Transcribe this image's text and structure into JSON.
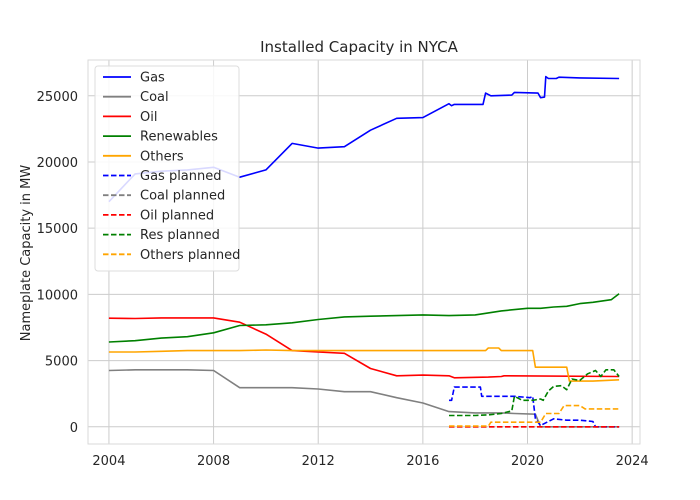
{
  "chart_data": {
    "type": "line",
    "title": "Installed Capacity in NYCA",
    "xlabel": "",
    "ylabel": "Nameplate Capacity in MW",
    "xlim": [
      2003.2,
      2024.3
    ],
    "ylim": [
      -1300,
      27700
    ],
    "xticks": [
      2004,
      2008,
      2012,
      2016,
      2020,
      2024
    ],
    "yticks": [
      0,
      5000,
      10000,
      15000,
      20000,
      25000
    ],
    "grid": true,
    "legend_position": "top-left",
    "series": [
      {
        "name": "Gas",
        "color": "#0000ff",
        "dashed": false,
        "points": [
          [
            2004,
            17000
          ],
          [
            2005,
            19100
          ],
          [
            2006,
            19300
          ],
          [
            2007,
            19400
          ],
          [
            2008,
            19600
          ],
          [
            2009,
            18850
          ],
          [
            2010,
            19400
          ],
          [
            2011,
            21400
          ],
          [
            2012,
            21050
          ],
          [
            2013,
            21150
          ],
          [
            2014,
            22400
          ],
          [
            2015,
            23300
          ],
          [
            2016,
            23350
          ],
          [
            2017,
            24400
          ],
          [
            2017.1,
            24250
          ],
          [
            2017.2,
            24350
          ],
          [
            2018.3,
            24350
          ],
          [
            2018.4,
            25200
          ],
          [
            2018.6,
            25000
          ],
          [
            2019.4,
            25050
          ],
          [
            2019.5,
            25250
          ],
          [
            2020.4,
            25200
          ],
          [
            2020.5,
            24850
          ],
          [
            2020.65,
            24900
          ],
          [
            2020.7,
            26450
          ],
          [
            2020.8,
            26300
          ],
          [
            2021.1,
            26300
          ],
          [
            2021.2,
            26400
          ],
          [
            2022.0,
            26350
          ],
          [
            2023.5,
            26300
          ]
        ]
      },
      {
        "name": "Coal",
        "color": "#808080",
        "dashed": false,
        "points": [
          [
            2004,
            4250
          ],
          [
            2005,
            4300
          ],
          [
            2006,
            4300
          ],
          [
            2007,
            4300
          ],
          [
            2008,
            4250
          ],
          [
            2009,
            2950
          ],
          [
            2010,
            2950
          ],
          [
            2011,
            2950
          ],
          [
            2012,
            2850
          ],
          [
            2013,
            2650
          ],
          [
            2014,
            2650
          ],
          [
            2015,
            2200
          ],
          [
            2016,
            1800
          ],
          [
            2017,
            1150
          ],
          [
            2018,
            1050
          ],
          [
            2019,
            1050
          ],
          [
            2019.5,
            1000
          ],
          [
            2020.3,
            950
          ],
          [
            2020.5,
            0
          ],
          [
            2023.5,
            0
          ]
        ]
      },
      {
        "name": "Oil",
        "color": "#ff0000",
        "dashed": false,
        "points": [
          [
            2004,
            8200
          ],
          [
            2005,
            8180
          ],
          [
            2006,
            8220
          ],
          [
            2007,
            8220
          ],
          [
            2008,
            8220
          ],
          [
            2009,
            7900
          ],
          [
            2010,
            7000
          ],
          [
            2011,
            5750
          ],
          [
            2012,
            5650
          ],
          [
            2013,
            5550
          ],
          [
            2014,
            4400
          ],
          [
            2015,
            3850
          ],
          [
            2016,
            3900
          ],
          [
            2017,
            3850
          ],
          [
            2017.2,
            3700
          ],
          [
            2018.5,
            3750
          ],
          [
            2019,
            3800
          ],
          [
            2019.1,
            3850
          ],
          [
            2023.5,
            3800
          ]
        ]
      },
      {
        "name": "Renewables",
        "color": "#008000",
        "dashed": false,
        "points": [
          [
            2004,
            6400
          ],
          [
            2005,
            6500
          ],
          [
            2006,
            6700
          ],
          [
            2007,
            6800
          ],
          [
            2008,
            7100
          ],
          [
            2009,
            7650
          ],
          [
            2010,
            7700
          ],
          [
            2011,
            7850
          ],
          [
            2012,
            8100
          ],
          [
            2013,
            8300
          ],
          [
            2014,
            8350
          ],
          [
            2015,
            8400
          ],
          [
            2016,
            8450
          ],
          [
            2017,
            8400
          ],
          [
            2018,
            8450
          ],
          [
            2018.5,
            8600
          ],
          [
            2019,
            8750
          ],
          [
            2020,
            8950
          ],
          [
            2020.5,
            8950
          ],
          [
            2021,
            9050
          ],
          [
            2021.5,
            9100
          ],
          [
            2022,
            9300
          ],
          [
            2022.5,
            9400
          ],
          [
            2023.2,
            9600
          ],
          [
            2023.5,
            10050
          ]
        ]
      },
      {
        "name": "Others",
        "color": "#ffa500",
        "dashed": false,
        "points": [
          [
            2004,
            5650
          ],
          [
            2005,
            5650
          ],
          [
            2006,
            5700
          ],
          [
            2007,
            5750
          ],
          [
            2008,
            5750
          ],
          [
            2009,
            5750
          ],
          [
            2010,
            5800
          ],
          [
            2011,
            5750
          ],
          [
            2012,
            5750
          ],
          [
            2013,
            5750
          ],
          [
            2014,
            5750
          ],
          [
            2015,
            5750
          ],
          [
            2016,
            5750
          ],
          [
            2017,
            5750
          ],
          [
            2018.4,
            5750
          ],
          [
            2018.5,
            5950
          ],
          [
            2018.9,
            5950
          ],
          [
            2019.0,
            5750
          ],
          [
            2019.5,
            5750
          ],
          [
            2020.2,
            5750
          ],
          [
            2020.3,
            4500
          ],
          [
            2021,
            4500
          ],
          [
            2021.5,
            4500
          ],
          [
            2021.6,
            3450
          ],
          [
            2022.0,
            3450
          ],
          [
            2022.5,
            3450
          ],
          [
            2023.5,
            3550
          ]
        ]
      },
      {
        "name": "Gas planned",
        "color": "#0000ff",
        "dashed": true,
        "points": [
          [
            2017,
            2000
          ],
          [
            2017.1,
            2000
          ],
          [
            2017.2,
            3000
          ],
          [
            2017.5,
            3000
          ],
          [
            2018.2,
            3000
          ],
          [
            2018.25,
            2300
          ],
          [
            2019,
            2300
          ],
          [
            2019.5,
            2300
          ],
          [
            2020.1,
            2200
          ],
          [
            2020.2,
            2300
          ],
          [
            2020.3,
            600
          ],
          [
            2020.5,
            100
          ],
          [
            2021,
            600
          ],
          [
            2021.5,
            500
          ],
          [
            2022,
            500
          ],
          [
            2022.5,
            400
          ],
          [
            2022.6,
            0
          ],
          [
            2023.5,
            0
          ]
        ]
      },
      {
        "name": "Coal planned",
        "color": "#808080",
        "dashed": true,
        "points": [
          [
            2017,
            0
          ],
          [
            2023.5,
            0
          ]
        ]
      },
      {
        "name": "Oil planned",
        "color": "#ff0000",
        "dashed": true,
        "points": [
          [
            2017,
            0
          ],
          [
            2023.5,
            0
          ]
        ]
      },
      {
        "name": "Res planned",
        "color": "#008000",
        "dashed": true,
        "points": [
          [
            2017,
            850
          ],
          [
            2018,
            850
          ],
          [
            2018.5,
            900
          ],
          [
            2019,
            1000
          ],
          [
            2019.4,
            1200
          ],
          [
            2019.5,
            2300
          ],
          [
            2019.8,
            2000
          ],
          [
            2020.2,
            2000
          ],
          [
            2020.5,
            2100
          ],
          [
            2020.6,
            2000
          ],
          [
            2020.8,
            2700
          ],
          [
            2021,
            3050
          ],
          [
            2021.3,
            3100
          ],
          [
            2021.5,
            2800
          ],
          [
            2021.7,
            3600
          ],
          [
            2022,
            3500
          ],
          [
            2022.3,
            4000
          ],
          [
            2022.6,
            4250
          ],
          [
            2022.8,
            3800
          ],
          [
            2023,
            4300
          ],
          [
            2023.3,
            4300
          ],
          [
            2023.5,
            3800
          ]
        ]
      },
      {
        "name": "Others planned",
        "color": "#ffa500",
        "dashed": true,
        "points": [
          [
            2017,
            50
          ],
          [
            2018.5,
            50
          ],
          [
            2018.6,
            350
          ],
          [
            2019.5,
            350
          ],
          [
            2020.5,
            350
          ],
          [
            2020.7,
            1000
          ],
          [
            2021.2,
            1000
          ],
          [
            2021.4,
            1600
          ],
          [
            2022.0,
            1600
          ],
          [
            2022.2,
            1350
          ],
          [
            2023.5,
            1350
          ]
        ]
      }
    ]
  }
}
